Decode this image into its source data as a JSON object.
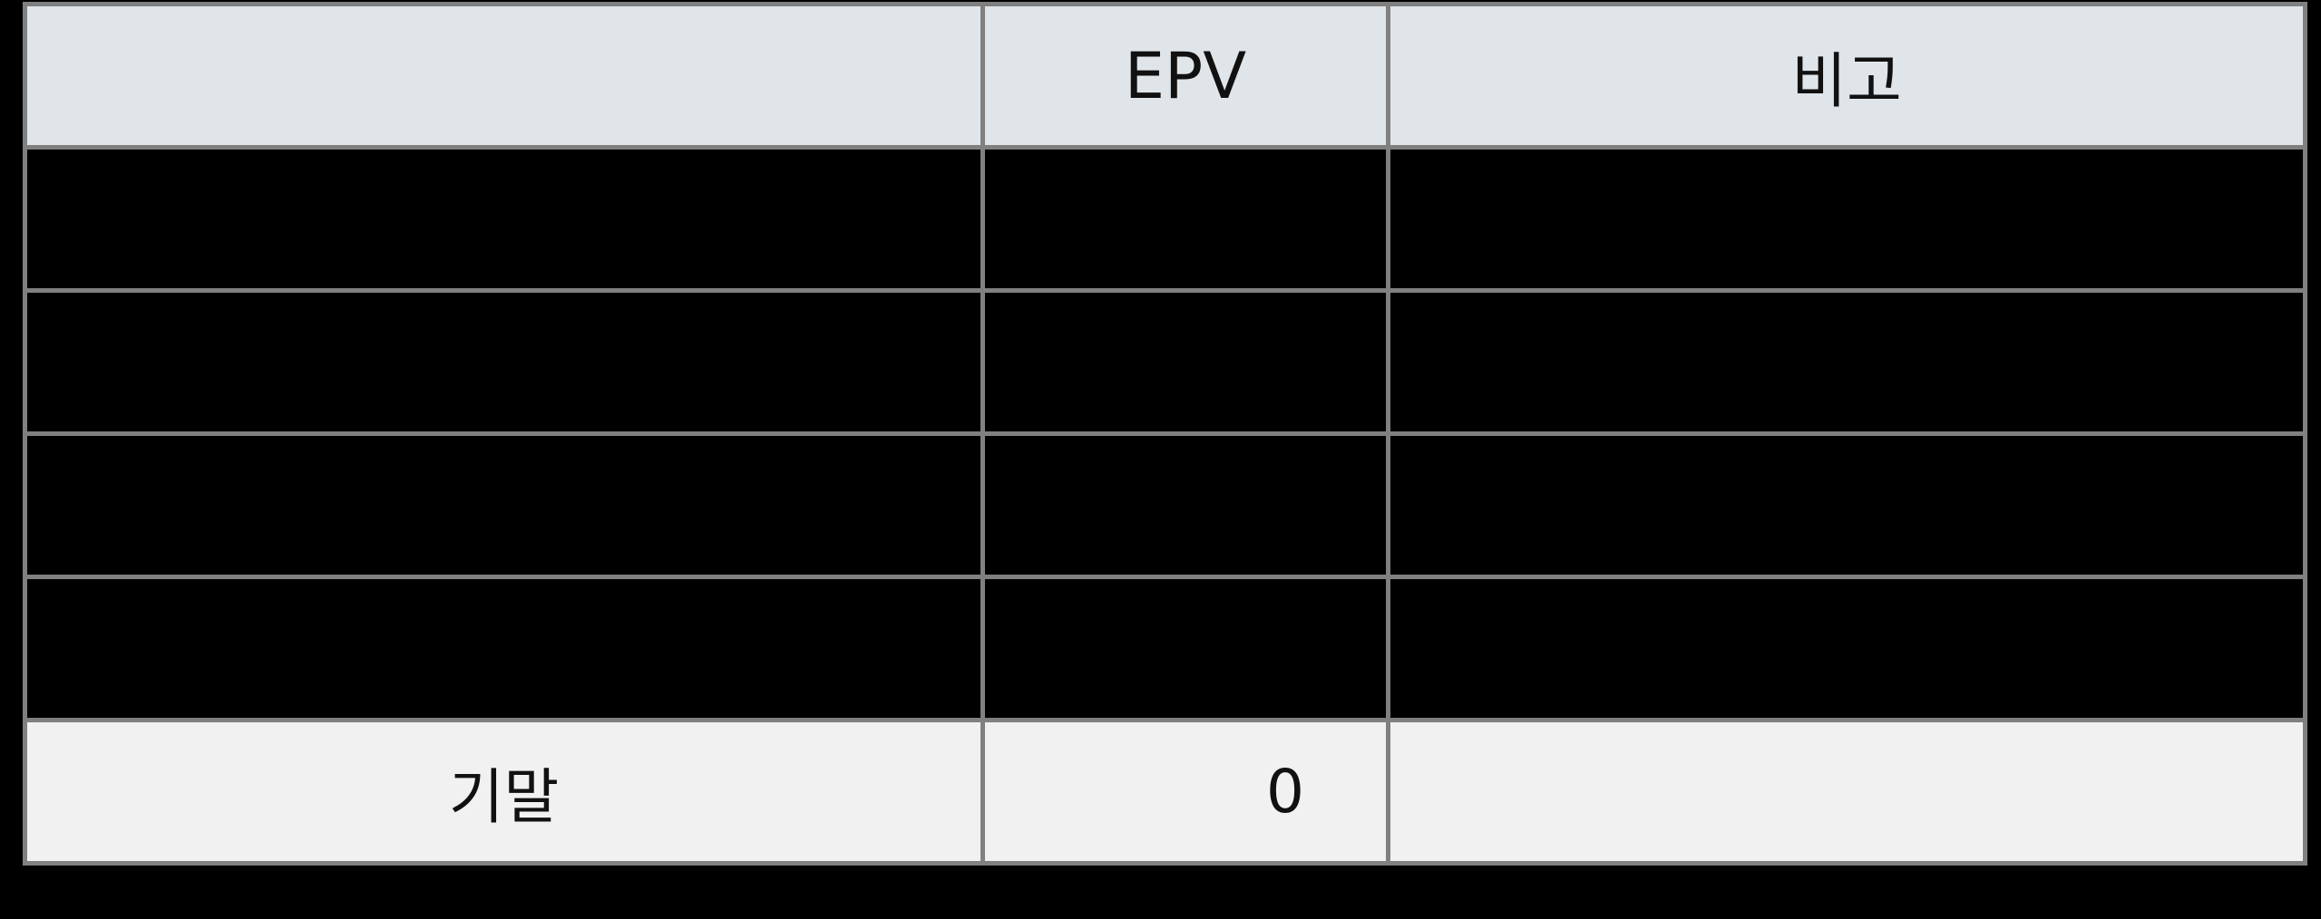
{
  "table": {
    "headers": [
      "",
      "EPV",
      "비고"
    ],
    "rows": [
      {
        "label": "",
        "epv": "",
        "note": ""
      },
      {
        "label": "",
        "epv": "",
        "note": ""
      },
      {
        "label": "",
        "epv": "",
        "note": ""
      },
      {
        "label": "",
        "epv": "",
        "note": ""
      }
    ],
    "footer": {
      "label": "기말",
      "epv": "0",
      "note": ""
    }
  },
  "colors": {
    "header_bg": "#dfe5e9",
    "footer_bg": "#f1f1f1",
    "grid": "#808080",
    "redacted": "#000000"
  }
}
